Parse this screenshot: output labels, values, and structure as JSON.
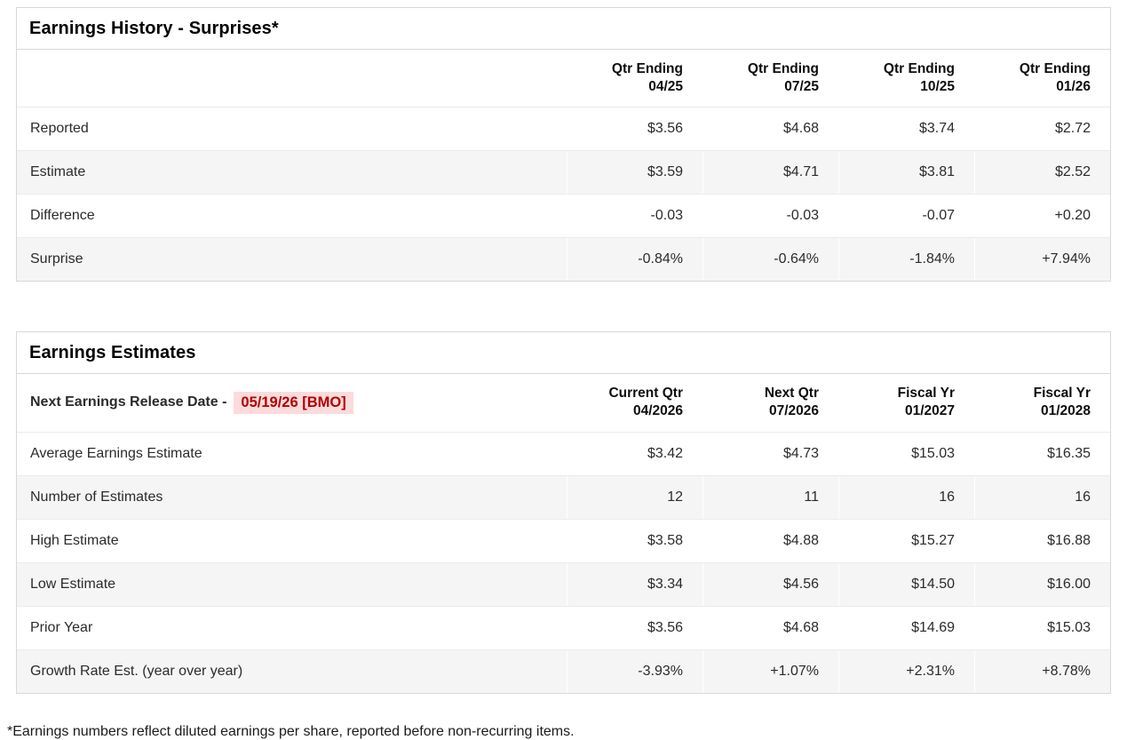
{
  "colors": {
    "negative_text": "#cc0000",
    "positive_text": "#00796b",
    "alt_row_bg": "#f5f5f5",
    "panel_border": "#d8d8d8",
    "release_date_bg": "#fbdbdb",
    "release_date_text": "#b30000"
  },
  "surprises": {
    "title": "Earnings History - Surprises*",
    "columns": [
      {
        "line1": "Qtr Ending",
        "line2": "04/25"
      },
      {
        "line1": "Qtr Ending",
        "line2": "07/25"
      },
      {
        "line1": "Qtr Ending",
        "line2": "10/25"
      },
      {
        "line1": "Qtr Ending",
        "line2": "01/26"
      }
    ],
    "rows": [
      {
        "label": "Reported",
        "values": [
          {
            "text": "$3.56",
            "tone": "neutral"
          },
          {
            "text": "$4.68",
            "tone": "neutral"
          },
          {
            "text": "$3.74",
            "tone": "neutral"
          },
          {
            "text": "$2.72",
            "tone": "neutral"
          }
        ]
      },
      {
        "label": "Estimate",
        "values": [
          {
            "text": "$3.59",
            "tone": "neutral"
          },
          {
            "text": "$4.71",
            "tone": "neutral"
          },
          {
            "text": "$3.81",
            "tone": "neutral"
          },
          {
            "text": "$2.52",
            "tone": "neutral"
          }
        ]
      },
      {
        "label": "Difference",
        "values": [
          {
            "text": "-0.03",
            "tone": "negative"
          },
          {
            "text": "-0.03",
            "tone": "negative"
          },
          {
            "text": "-0.07",
            "tone": "negative"
          },
          {
            "text": "+0.20",
            "tone": "positive"
          }
        ]
      },
      {
        "label": "Surprise",
        "values": [
          {
            "text": "-0.84%",
            "tone": "negative"
          },
          {
            "text": "-0.64%",
            "tone": "negative"
          },
          {
            "text": "-1.84%",
            "tone": "negative"
          },
          {
            "text": "+7.94%",
            "tone": "positive"
          }
        ]
      }
    ]
  },
  "estimates": {
    "title": "Earnings Estimates",
    "release_date_label": "Next Earnings Release Date -",
    "release_date_value": "05/19/26 [BMO]",
    "columns": [
      {
        "line1": "Current Qtr",
        "line2": "04/2026"
      },
      {
        "line1": "Next Qtr",
        "line2": "07/2026"
      },
      {
        "line1": "Fiscal Yr",
        "line2": "01/2027"
      },
      {
        "line1": "Fiscal Yr",
        "line2": "01/2028"
      }
    ],
    "rows": [
      {
        "label": "Average Earnings Estimate",
        "values": [
          {
            "text": "$3.42",
            "tone": "neutral"
          },
          {
            "text": "$4.73",
            "tone": "neutral"
          },
          {
            "text": "$15.03",
            "tone": "neutral"
          },
          {
            "text": "$16.35",
            "tone": "neutral"
          }
        ]
      },
      {
        "label": "Number of Estimates",
        "values": [
          {
            "text": "12",
            "tone": "neutral"
          },
          {
            "text": "11",
            "tone": "neutral"
          },
          {
            "text": "16",
            "tone": "neutral"
          },
          {
            "text": "16",
            "tone": "neutral"
          }
        ]
      },
      {
        "label": "High Estimate",
        "values": [
          {
            "text": "$3.58",
            "tone": "neutral"
          },
          {
            "text": "$4.88",
            "tone": "neutral"
          },
          {
            "text": "$15.27",
            "tone": "neutral"
          },
          {
            "text": "$16.88",
            "tone": "neutral"
          }
        ]
      },
      {
        "label": "Low Estimate",
        "values": [
          {
            "text": "$3.34",
            "tone": "neutral"
          },
          {
            "text": "$4.56",
            "tone": "neutral"
          },
          {
            "text": "$14.50",
            "tone": "neutral"
          },
          {
            "text": "$16.00",
            "tone": "neutral"
          }
        ]
      },
      {
        "label": "Prior Year",
        "values": [
          {
            "text": "$3.56",
            "tone": "neutral"
          },
          {
            "text": "$4.68",
            "tone": "neutral"
          },
          {
            "text": "$14.69",
            "tone": "neutral"
          },
          {
            "text": "$15.03",
            "tone": "neutral"
          }
        ]
      },
      {
        "label": "Growth Rate Est. (year over year)",
        "values": [
          {
            "text": "-3.93%",
            "tone": "negative"
          },
          {
            "text": "+1.07%",
            "tone": "positive"
          },
          {
            "text": "+2.31%",
            "tone": "positive"
          },
          {
            "text": "+8.78%",
            "tone": "positive"
          }
        ]
      }
    ]
  },
  "footnote": "*Earnings numbers reflect diluted earnings per share, reported before non-recurring items."
}
